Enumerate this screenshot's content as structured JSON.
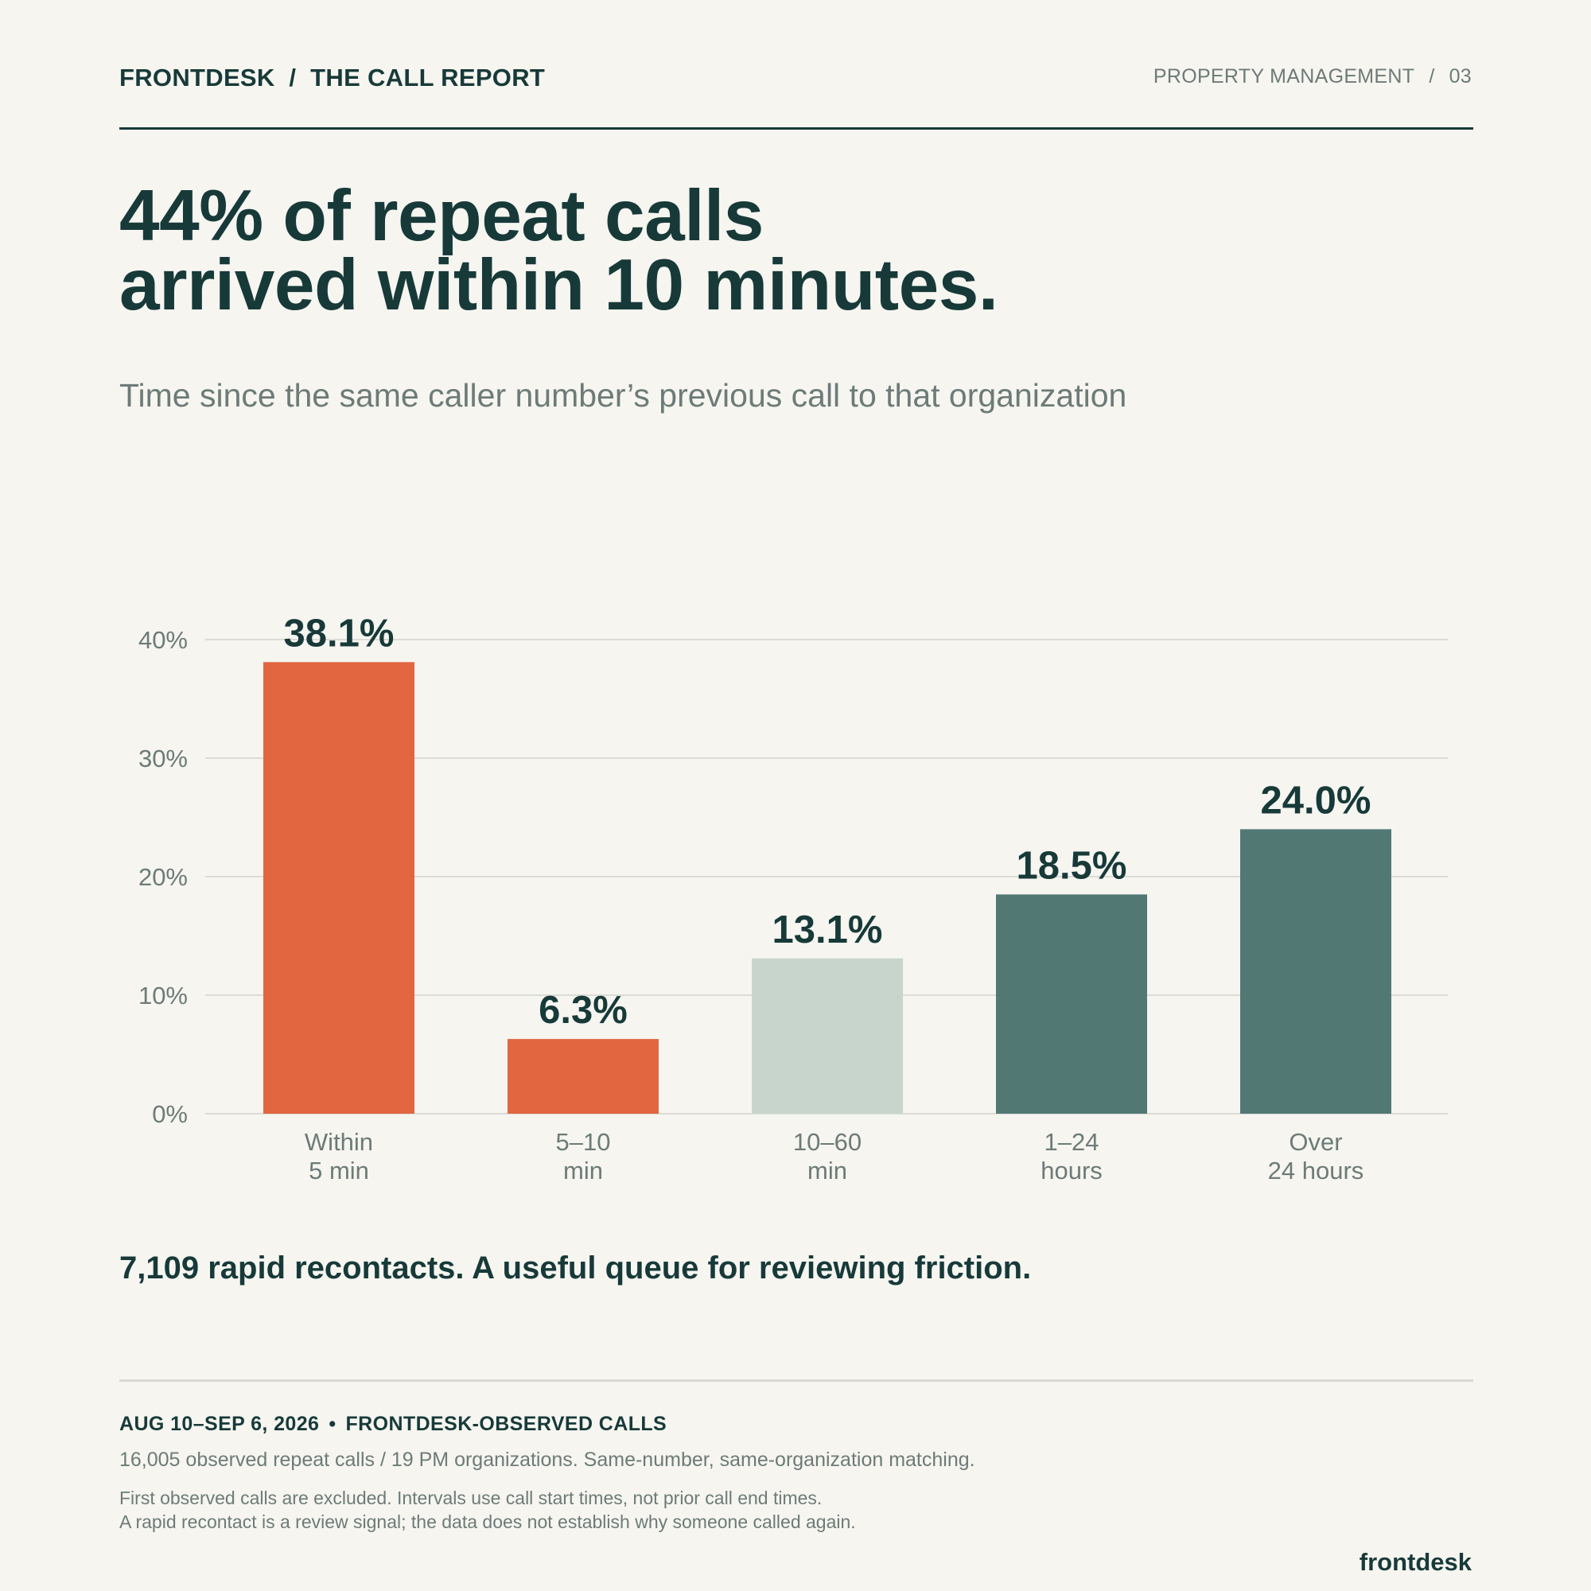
{
  "header": {
    "brand": "FRONTDESK  /  THE CALL REPORT",
    "section": "PROPERTY MANAGEMENT",
    "page_number": "03"
  },
  "headline": {
    "line1": "44% of repeat calls",
    "line2": "arrived within 10 minutes."
  },
  "subtitle": "Time since the same caller number’s previous call to that organization",
  "colors": {
    "accent": "#e26640",
    "light": "#c8d5cc",
    "dark": "#527874",
    "ink": "#173a39",
    "muted": "#6d7b78"
  },
  "chart_data": {
    "type": "bar",
    "categories": [
      [
        "Within",
        "5 min"
      ],
      [
        "5–10",
        "min"
      ],
      [
        "10–60",
        "min"
      ],
      [
        "1–24",
        "hours"
      ],
      [
        "Over",
        "24 hours"
      ]
    ],
    "values": [
      38.1,
      6.3,
      13.1,
      18.5,
      24.0
    ],
    "value_labels": [
      "38.1%",
      "6.3%",
      "13.1%",
      "18.5%",
      "24.0%"
    ],
    "bar_colors": [
      "#e26640",
      "#e26640",
      "#c8d5cc",
      "#527874",
      "#527874"
    ],
    "ylim": [
      0,
      40
    ],
    "yticks": [
      0,
      10,
      20,
      30,
      40
    ],
    "ytick_labels": [
      "0%",
      "10%",
      "20%",
      "30%",
      "40%"
    ],
    "grid": true,
    "legend": "none"
  },
  "takeaway": "7,109 rapid recontacts. A useful queue for reviewing friction.",
  "footer": {
    "period": "AUG 10–SEP 6, 2026",
    "source": "FRONTDESK-OBSERVED CALLS",
    "sample": "16,005 observed repeat calls / 19 PM organizations. Same-number, same-organization matching.",
    "note1": "First observed calls are excluded. Intervals use call start times, not prior call end times.",
    "note2": "A rapid recontact is a review signal; the data does not establish why someone called again.",
    "logo": "frontdesk"
  }
}
